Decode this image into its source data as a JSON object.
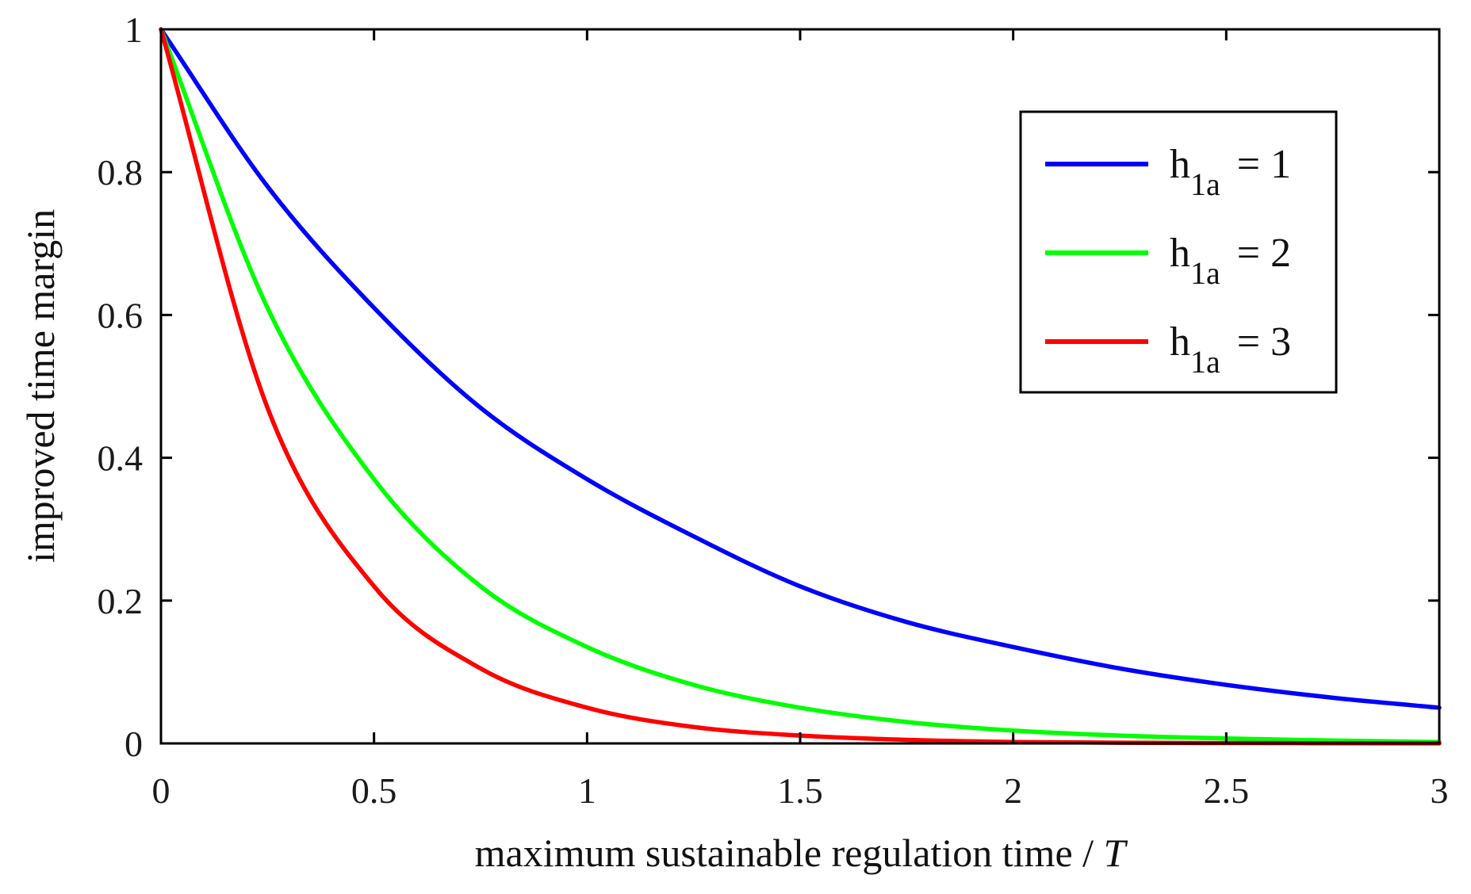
{
  "chart_data": {
    "type": "line",
    "title": "",
    "xlabel": "maximum sustainable regulation time / ",
    "xlabel_italic": "T",
    "ylabel": "improved time margin",
    "xlim": [
      0,
      3
    ],
    "ylim": [
      0,
      1
    ],
    "xticks": [
      0,
      0.5,
      1,
      1.5,
      2,
      2.5,
      3
    ],
    "xtick_labels": [
      "0",
      "0.5",
      "1",
      "1.5",
      "2",
      "2.5",
      "3"
    ],
    "yticks": [
      0,
      0.2,
      0.4,
      0.6,
      0.8,
      1
    ],
    "ytick_labels": [
      "0",
      "0.2",
      "0.4",
      "0.6",
      "0.8",
      "1"
    ],
    "grid": false,
    "legend_position": "top-right",
    "x": [
      0,
      0.25,
      0.5,
      0.75,
      1,
      1.25,
      1.5,
      1.75,
      2,
      2.25,
      2.5,
      2.75,
      3
    ],
    "series": [
      {
        "name": "h",
        "name_sub": "1a",
        "name_suffix": " = 1",
        "color": "#0000ff",
        "values": [
          1,
          0.78,
          0.61,
          0.47,
          0.37,
          0.29,
          0.22,
          0.17,
          0.135,
          0.105,
          0.082,
          0.064,
          0.05
        ]
      },
      {
        "name": "h",
        "name_sub": "1a",
        "name_suffix": " = 2",
        "color": "#00ff00",
        "values": [
          1,
          0.61,
          0.37,
          0.22,
          0.135,
          0.082,
          0.05,
          0.03,
          0.018,
          0.011,
          0.007,
          0.004,
          0.002
        ]
      },
      {
        "name": "h",
        "name_sub": "1a",
        "name_suffix": " = 3",
        "color": "#ff0000",
        "values": [
          1,
          0.47,
          0.22,
          0.105,
          0.05,
          0.023,
          0.011,
          0.005,
          0.002,
          0.001,
          0.0005,
          0.0003,
          0.0001
        ]
      }
    ]
  }
}
